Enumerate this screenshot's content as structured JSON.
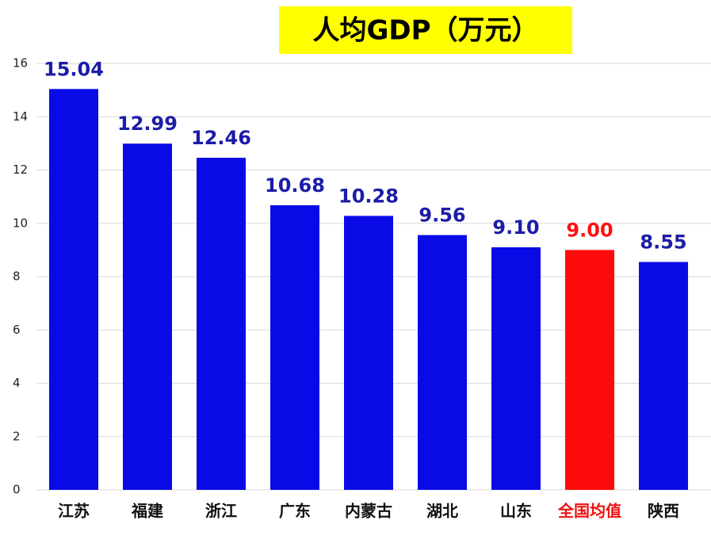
{
  "chart_data": {
    "type": "bar",
    "title": "人均GDP（万元）",
    "categories": [
      "江苏",
      "福建",
      "浙江",
      "广东",
      "内蒙古",
      "湖北",
      "山东",
      "全国均值",
      "陕西"
    ],
    "values": [
      15.04,
      12.99,
      12.46,
      10.68,
      10.28,
      9.56,
      9.1,
      9.0,
      8.55
    ],
    "value_labels": [
      "15.04",
      "12.99",
      "12.46",
      "10.68",
      "10.28",
      "9.56",
      "9.10",
      "9.00",
      "8.55"
    ],
    "colors": [
      "#0a0ae6",
      "#0a0ae6",
      "#0a0ae6",
      "#0a0ae6",
      "#0a0ae6",
      "#0a0ae6",
      "#0a0ae6",
      "#ff0a0a",
      "#0a0ae6"
    ],
    "value_label_colors": [
      "#1c1ca8",
      "#1c1ca8",
      "#1c1ca8",
      "#1c1ca8",
      "#1c1ca8",
      "#1c1ca8",
      "#1c1ca8",
      "#ff1010",
      "#1c1ca8"
    ],
    "category_label_colors": [
      "#111",
      "#111",
      "#111",
      "#111",
      "#111",
      "#111",
      "#111",
      "#ee1111",
      "#111"
    ],
    "ylim": [
      0,
      16
    ],
    "yticks": [
      0,
      2,
      4,
      6,
      8,
      10,
      12,
      14,
      16
    ],
    "grid": true
  }
}
